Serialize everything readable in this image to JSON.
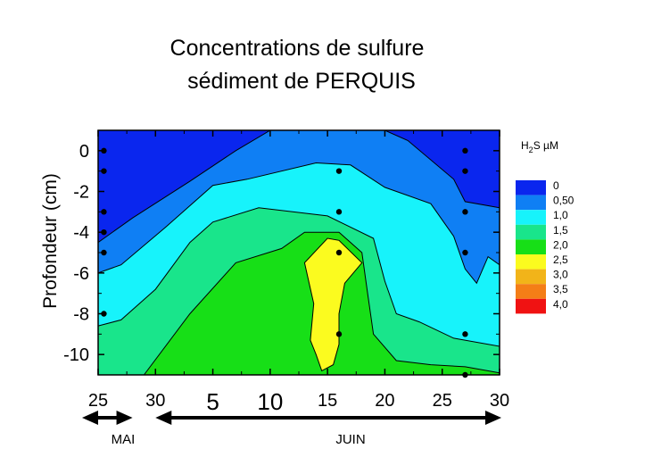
{
  "chart_data": {
    "type": "contour",
    "title": [
      "Concentrations de sulfure",
      "sédiment de PERQUIS"
    ],
    "ylabel": "Profondeur  (cm)",
    "legend_title": "H2S µM",
    "xlim": [
      25,
      30
    ],
    "ylim": [
      -11,
      1
    ],
    "x_ticks": [
      {
        "label": "25",
        "value": 25
      },
      {
        "label": "30",
        "value": 30
      },
      {
        "label": "5",
        "value": 35
      },
      {
        "label": "10",
        "value": 40
      },
      {
        "label": "15",
        "value": 45
      },
      {
        "label": "20",
        "value": 50
      },
      {
        "label": "25",
        "value": 55
      },
      {
        "label": "30",
        "value": 60
      }
    ],
    "xlim_days": [
      25,
      60
    ],
    "y_ticks": [
      0,
      -2,
      -4,
      -6,
      -8,
      -10
    ],
    "y_tick_labels": [
      "0",
      "-2",
      "-4",
      "-6",
      "-8",
      "-10"
    ],
    "months": [
      {
        "label": "MAI",
        "from": 25,
        "to": 28
      },
      {
        "label": "JUIN",
        "from": 30,
        "to": 60
      }
    ],
    "legend": [
      {
        "label": "0",
        "color": "#0a26ee"
      },
      {
        "label": "0,50",
        "color": "#0f7ff4"
      },
      {
        "label": "1,0",
        "color": "#17f3fb"
      },
      {
        "label": "1,5",
        "color": "#19e58b"
      },
      {
        "label": "2,0",
        "color": "#17df17"
      },
      {
        "label": "2,5",
        "color": "#fbfb1f"
      },
      {
        "label": "3,0",
        "color": "#f2b419"
      },
      {
        "label": "3,5",
        "color": "#f47e17"
      },
      {
        "label": "4,0",
        "color": "#f01212"
      }
    ],
    "sample_points": [
      {
        "x": 25.5,
        "y": 0
      },
      {
        "x": 25.5,
        "y": -1
      },
      {
        "x": 25.5,
        "y": -3
      },
      {
        "x": 25.5,
        "y": -4
      },
      {
        "x": 25.5,
        "y": -5
      },
      {
        "x": 25.5,
        "y": -8
      },
      {
        "x": 46,
        "y": -1
      },
      {
        "x": 46,
        "y": -3
      },
      {
        "x": 46,
        "y": -5
      },
      {
        "x": 46,
        "y": -9
      },
      {
        "x": 57,
        "y": 0
      },
      {
        "x": 57,
        "y": -1
      },
      {
        "x": 57,
        "y": -3
      },
      {
        "x": 57,
        "y": -5
      },
      {
        "x": 57,
        "y": -9
      },
      {
        "x": 57,
        "y": -11
      }
    ],
    "contour_levels": [
      0,
      0.5,
      1.0,
      1.5,
      2.0,
      2.5
    ],
    "contour_boundaries": [
      {
        "level": 0.5,
        "points": [
          [
            25,
            -4.5
          ],
          [
            28,
            -3.3
          ],
          [
            33,
            -1.5
          ],
          [
            37,
            0
          ],
          [
            40,
            1
          ],
          [
            45,
            1
          ],
          [
            50,
            1
          ],
          [
            52,
            0.5
          ],
          [
            56,
            -1.4
          ],
          [
            57,
            -2.5
          ],
          [
            60,
            -2.8
          ]
        ]
      },
      {
        "level": 1.0,
        "points": [
          [
            25,
            -6
          ],
          [
            27,
            -5.6
          ],
          [
            31,
            -3.7
          ],
          [
            35,
            -1.7
          ],
          [
            38,
            -1.4
          ],
          [
            44,
            -0.6
          ],
          [
            47,
            -0.7
          ],
          [
            50,
            -1.8
          ],
          [
            54,
            -2.6
          ],
          [
            56,
            -4.2
          ],
          [
            57,
            -5.8
          ],
          [
            58,
            -6.5
          ],
          [
            59,
            -5.2
          ],
          [
            60,
            -5.6
          ]
        ]
      },
      {
        "level": 1.5,
        "points": [
          [
            25,
            -8.6
          ],
          [
            27,
            -8.3
          ],
          [
            30,
            -6.8
          ],
          [
            33,
            -4.5
          ],
          [
            35,
            -3.5
          ],
          [
            39,
            -2.8
          ],
          [
            45,
            -3.2
          ],
          [
            49,
            -4.3
          ],
          [
            50,
            -6.4
          ],
          [
            51,
            -8
          ],
          [
            53,
            -8.4
          ],
          [
            56,
            -9.2
          ],
          [
            60,
            -9.6
          ]
        ]
      },
      {
        "level": 2.0,
        "points": [
          [
            29,
            -11
          ],
          [
            33,
            -8
          ],
          [
            37,
            -5.5
          ],
          [
            41,
            -4.8
          ],
          [
            43,
            -4
          ],
          [
            46,
            -4
          ],
          [
            48,
            -5
          ],
          [
            48.5,
            -7
          ],
          [
            49,
            -9
          ],
          [
            51,
            -10.3
          ],
          [
            54,
            -10.5
          ],
          [
            57,
            -10.6
          ],
          [
            60,
            -10.9
          ]
        ]
      },
      {
        "level": 2.5,
        "points": [
          [
            43,
            -5.5
          ],
          [
            45,
            -4.3
          ],
          [
            46,
            -4.4
          ],
          [
            48,
            -5.5
          ],
          [
            46.5,
            -6.5
          ],
          [
            46,
            -8
          ],
          [
            46,
            -9.5
          ],
          [
            45.5,
            -10.5
          ],
          [
            44.5,
            -10.8
          ],
          [
            44,
            -10
          ],
          [
            43.5,
            -9.3
          ],
          [
            43.8,
            -7.5
          ],
          [
            43,
            -5.5
          ]
        ]
      }
    ]
  }
}
